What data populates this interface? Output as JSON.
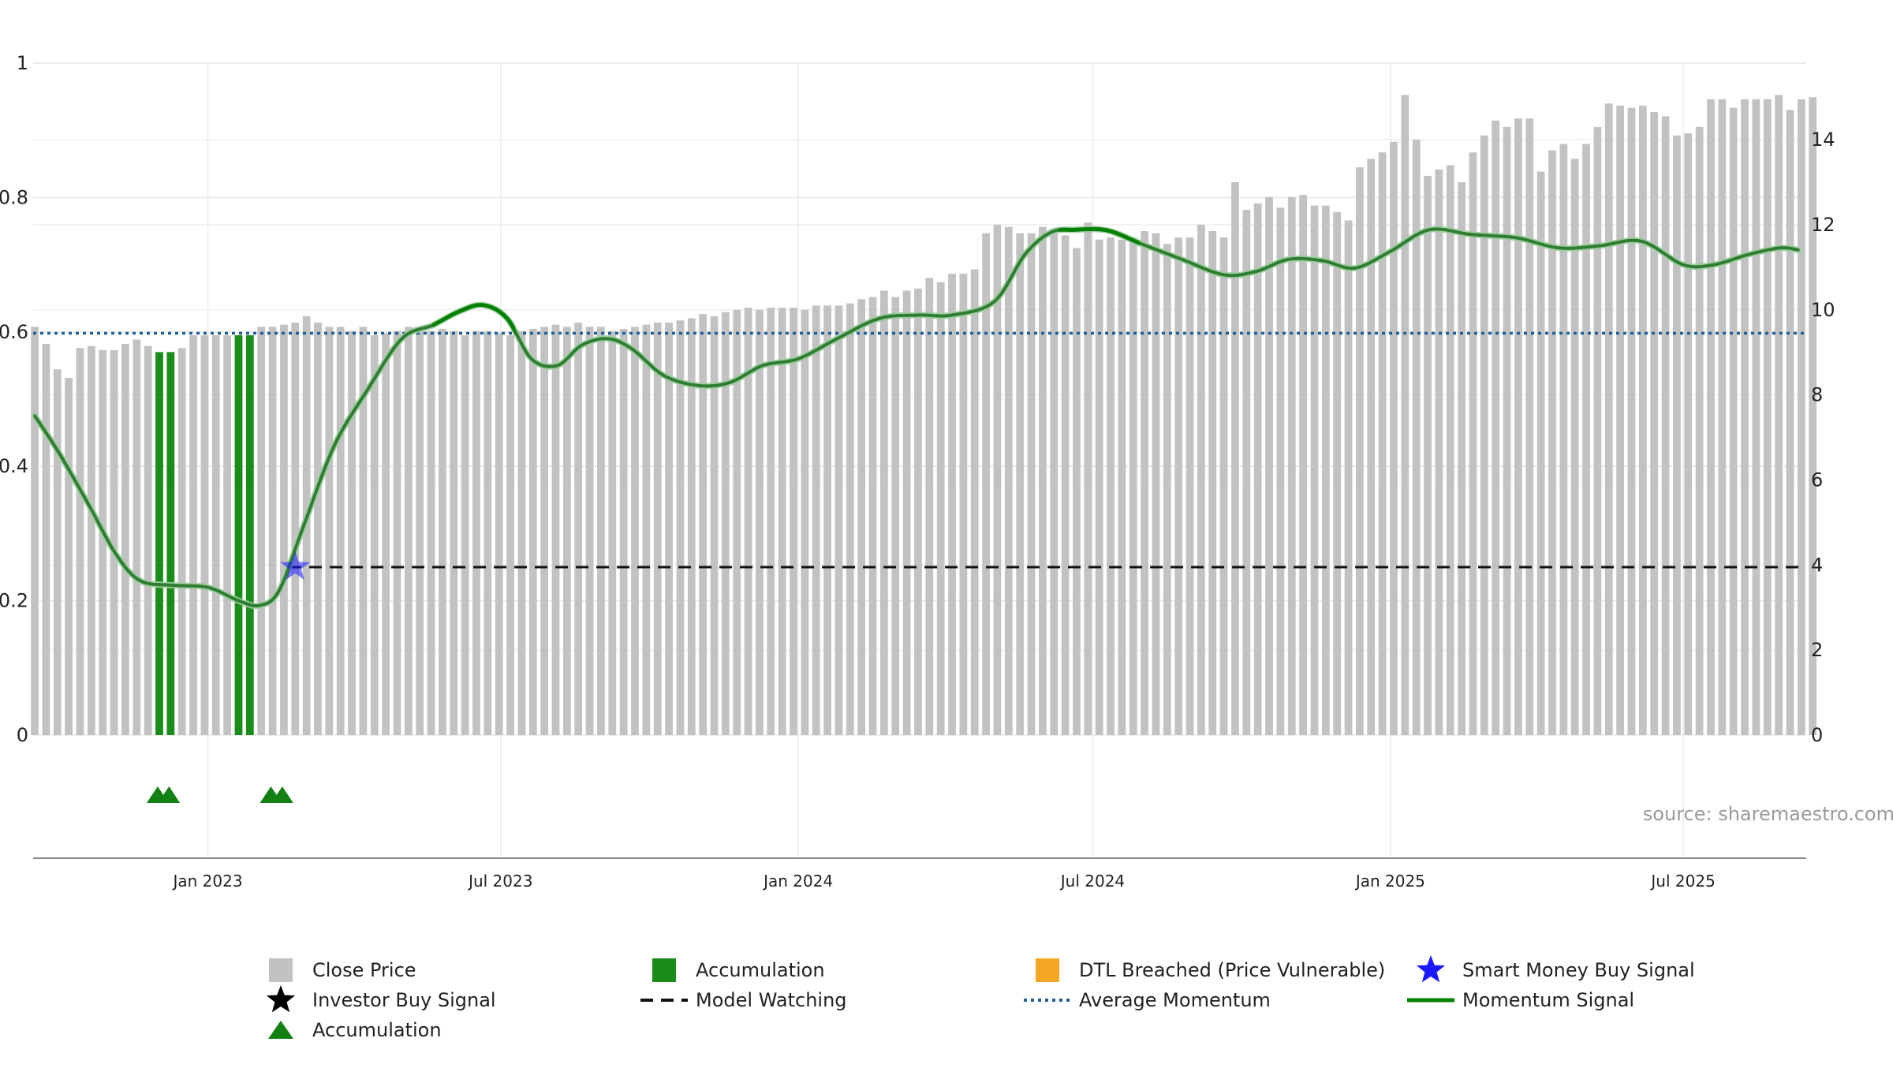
{
  "chart_data": {
    "type": "bar",
    "source_text": "source: sharemaestro.com",
    "colors": {
      "close_price": "#c2c2c2",
      "accumulation": "#1a8c1a",
      "momentum": "#2e7d32",
      "momentum_strong": "#008000",
      "average_momentum": "#1f5f99",
      "model_watching": "#111111",
      "smart_money": "#1a1aff",
      "dtl": "#f5a623",
      "triangle": "#128012",
      "grid": "#e6e6e6"
    },
    "x_axis": {
      "range": [
        "2022-09-15",
        "2025-09-15"
      ],
      "ticks": [
        {
          "date": "2023-01-01",
          "label": "Jan 2023"
        },
        {
          "date": "2023-07-01",
          "label": "Jul 2023"
        },
        {
          "date": "2024-01-01",
          "label": "Jan 2024"
        },
        {
          "date": "2024-07-01",
          "label": "Jul 2024"
        },
        {
          "date": "2025-01-01",
          "label": "Jan 2025"
        },
        {
          "date": "2025-07-01",
          "label": "Jul 2025"
        }
      ]
    },
    "y_left": {
      "range": [
        0,
        1
      ],
      "ticks": [
        {
          "v": 0,
          "label": "0"
        },
        {
          "v": 0.2,
          "label": "0.2"
        },
        {
          "v": 0.4,
          "label": "0.4"
        },
        {
          "v": 0.6,
          "label": "0.6"
        },
        {
          "v": 0.8,
          "label": "0.8"
        },
        {
          "v": 1,
          "label": "1"
        }
      ]
    },
    "y_right": {
      "range": [
        0,
        15.8
      ],
      "ticks": [
        {
          "v": 0,
          "label": "0"
        },
        {
          "v": 2,
          "label": "2"
        },
        {
          "v": 4,
          "label": "4"
        },
        {
          "v": 6,
          "label": "6"
        },
        {
          "v": 8,
          "label": "8"
        },
        {
          "v": 10,
          "label": "10"
        },
        {
          "v": 12,
          "label": "12"
        },
        {
          "v": 14,
          "label": "14"
        }
      ]
    },
    "close_price": {
      "name": "Close Price",
      "start_date": "2022-09-16",
      "interval_days": 7,
      "values": [
        9.6,
        9.2,
        8.6,
        8.4,
        9.1,
        9.15,
        9.05,
        9.05,
        9.2,
        9.3,
        9.15,
        9.1,
        9.0,
        9.1,
        9.4,
        9.4,
        9.4,
        9.4,
        9.3,
        9.3,
        9.6,
        9.6,
        9.65,
        9.7,
        9.85,
        9.7,
        9.6,
        9.6,
        9.5,
        9.6,
        9.4,
        9.45,
        9.5,
        9.6,
        9.5,
        9.5,
        9.55,
        9.5,
        9.4,
        9.5,
        9.5,
        9.45,
        9.4,
        9.5,
        9.55,
        9.6,
        9.65,
        9.6,
        9.7,
        9.6,
        9.6,
        9.5,
        9.55,
        9.6,
        9.65,
        9.7,
        9.7,
        9.75,
        9.8,
        9.9,
        9.85,
        9.95,
        10.0,
        10.05,
        10.0,
        10.05,
        10.05,
        10.05,
        10.0,
        10.1,
        10.1,
        10.1,
        10.15,
        10.25,
        10.3,
        10.45,
        10.3,
        10.45,
        10.5,
        10.75,
        10.65,
        10.85,
        10.85,
        10.95,
        11.8,
        12.0,
        11.95,
        11.8,
        11.8,
        11.95,
        11.9,
        11.75,
        11.45,
        12.05,
        11.65,
        11.7,
        11.65,
        11.7,
        11.85,
        11.8,
        11.55,
        11.7,
        11.7,
        12.0,
        11.85,
        11.7,
        13.0,
        12.35,
        12.5,
        12.65,
        12.4,
        12.65,
        12.7,
        12.45,
        12.45,
        12.3,
        12.1,
        13.35,
        13.55,
        13.7,
        13.95,
        15.05,
        14.0,
        13.15,
        13.3,
        13.4,
        13.0,
        13.7,
        14.1,
        14.45,
        14.3,
        14.5,
        14.5,
        13.25,
        13.75,
        13.9,
        13.55,
        13.9,
        14.3,
        14.85,
        14.8,
        14.75,
        14.8,
        14.65,
        14.55,
        14.1,
        14.15,
        14.3,
        14.95,
        14.95,
        14.75,
        14.95,
        14.95,
        14.95,
        15.05,
        14.7,
        14.95,
        15.0
      ],
      "accumulation_indices": [
        11,
        12,
        18,
        19
      ]
    },
    "momentum_signal": {
      "name": "Momentum Signal",
      "points": [
        [
          "2022-09-16",
          0.475
        ],
        [
          "2022-10-01",
          0.42
        ],
        [
          "2022-10-20",
          0.34
        ],
        [
          "2022-11-05",
          0.27
        ],
        [
          "2022-11-20",
          0.23
        ],
        [
          "2022-12-10",
          0.223
        ],
        [
          "2023-01-01",
          0.22
        ],
        [
          "2023-01-20",
          0.2
        ],
        [
          "2023-02-02",
          0.193
        ],
        [
          "2023-02-14",
          0.215
        ],
        [
          "2023-03-01",
          0.31
        ],
        [
          "2023-03-20",
          0.43
        ],
        [
          "2023-04-10",
          0.515
        ],
        [
          "2023-05-01",
          0.59
        ],
        [
          "2023-05-20",
          0.61
        ],
        [
          "2023-06-05",
          0.63
        ],
        [
          "2023-06-20",
          0.64
        ],
        [
          "2023-07-05",
          0.62
        ],
        [
          "2023-07-20",
          0.56
        ],
        [
          "2023-08-05",
          0.55
        ],
        [
          "2023-08-20",
          0.58
        ],
        [
          "2023-09-05",
          0.59
        ],
        [
          "2023-09-20",
          0.575
        ],
        [
          "2023-10-10",
          0.535
        ],
        [
          "2023-11-01",
          0.52
        ],
        [
          "2023-11-20",
          0.525
        ],
        [
          "2023-12-10",
          0.55
        ],
        [
          "2024-01-01",
          0.56
        ],
        [
          "2024-01-25",
          0.59
        ],
        [
          "2024-02-20",
          0.62
        ],
        [
          "2024-03-15",
          0.625
        ],
        [
          "2024-04-05",
          0.625
        ],
        [
          "2024-05-01",
          0.645
        ],
        [
          "2024-05-20",
          0.715
        ],
        [
          "2024-06-05",
          0.748
        ],
        [
          "2024-06-20",
          0.752
        ],
        [
          "2024-07-10",
          0.751
        ],
        [
          "2024-08-01",
          0.73
        ],
        [
          "2024-08-25",
          0.708
        ],
        [
          "2024-09-20",
          0.685
        ],
        [
          "2024-10-10",
          0.69
        ],
        [
          "2024-10-30",
          0.708
        ],
        [
          "2024-11-20",
          0.706
        ],
        [
          "2024-12-10",
          0.695
        ],
        [
          "2025-01-01",
          0.72
        ],
        [
          "2025-01-25",
          0.752
        ],
        [
          "2025-02-20",
          0.745
        ],
        [
          "2025-03-20",
          0.74
        ],
        [
          "2025-04-15",
          0.725
        ],
        [
          "2025-05-10",
          0.728
        ],
        [
          "2025-06-05",
          0.735
        ],
        [
          "2025-07-01",
          0.7
        ],
        [
          "2025-07-20",
          0.7
        ],
        [
          "2025-08-10",
          0.715
        ],
        [
          "2025-08-30",
          0.725
        ],
        [
          "2025-09-10",
          0.722
        ]
      ],
      "strong_segments": [
        [
          "2023-05-20",
          "2023-07-10"
        ],
        [
          "2024-06-10",
          "2024-07-30"
        ]
      ]
    },
    "average_momentum": {
      "name": "Average Momentum",
      "value": 0.598
    },
    "model_watching": {
      "name": "Model Watching",
      "value": 0.25,
      "from": "2023-02-20"
    },
    "smart_money_buy": {
      "name": "Smart Money Buy Signal",
      "date": "2023-02-24",
      "value": 0.25
    },
    "accumulation_triangles": {
      "name": "Accumulation",
      "dates": [
        "2022-12-01",
        "2022-12-08",
        "2023-02-09",
        "2023-02-16"
      ]
    },
    "legend": [
      {
        "key": "close",
        "label": "Close Price"
      },
      {
        "key": "accum-bar",
        "label": "Accumulation"
      },
      {
        "key": "dtl",
        "label": "DTL Breached (Price Vulnerable)"
      },
      {
        "key": "smart",
        "label": "Smart Money Buy Signal"
      },
      {
        "key": "investor",
        "label": "Investor Buy Signal"
      },
      {
        "key": "watch",
        "label": "Model Watching"
      },
      {
        "key": "avg",
        "label": "Average Momentum"
      },
      {
        "key": "momentum",
        "label": "Momentum Signal"
      },
      {
        "key": "triangle",
        "label": "Accumulation"
      }
    ]
  }
}
